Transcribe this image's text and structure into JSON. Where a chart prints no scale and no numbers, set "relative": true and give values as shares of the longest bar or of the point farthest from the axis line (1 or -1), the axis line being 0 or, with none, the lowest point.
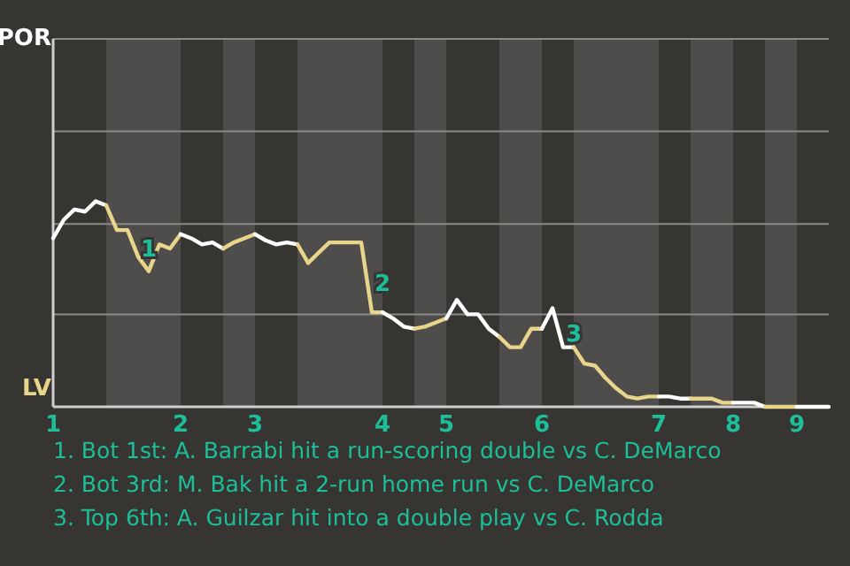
{
  "chart_data": {
    "type": "line",
    "relative": true,
    "categories": [
      "1",
      null,
      null,
      null,
      null,
      null,
      null,
      null,
      null,
      null,
      null,
      null,
      "2",
      null,
      null,
      null,
      null,
      null,
      null,
      "3",
      null,
      null,
      null,
      null,
      null,
      null,
      null,
      null,
      null,
      null,
      null,
      "4",
      null,
      null,
      null,
      null,
      null,
      "5",
      null,
      null,
      null,
      null,
      null,
      null,
      null,
      null,
      "6",
      null,
      null,
      null,
      null,
      null,
      null,
      null,
      null,
      null,
      null,
      "7",
      null,
      null,
      null,
      null,
      null,
      null,
      "8",
      null,
      null,
      null,
      null,
      null,
      "9",
      null,
      null,
      null
    ],
    "ref_lines": [
      {
        "axis": "y",
        "value": 0.45,
        "color": "#8c8a87"
      },
      {
        "axis": "y",
        "value": 0.89,
        "color": "#8c8a87"
      },
      {
        "axis": "y",
        "value": 1.34,
        "color": "#8c8a87"
      },
      {
        "axis": "y",
        "value": 1.79,
        "color": "#8c8a87"
      }
    ],
    "marker": "none",
    "line_style": "solid",
    "series": [
      {
        "color": "#ffffff",
        "values": [
          0.82,
          0.91,
          0.96,
          0.95,
          1,
          0.98,
          null,
          null,
          null,
          null,
          null,
          null,
          null,
          null,
          null,
          null,
          null,
          null,
          null,
          null,
          null,
          null,
          null,
          null,
          null,
          null,
          null,
          null,
          null,
          null,
          null,
          null,
          null,
          null,
          null,
          null,
          null,
          null,
          null,
          null,
          null,
          null,
          null,
          null,
          null,
          null,
          null,
          null,
          null,
          null,
          null,
          null,
          null,
          null,
          null,
          null,
          null,
          null,
          null,
          null,
          null,
          null,
          null,
          null,
          null,
          null,
          null,
          null,
          null,
          null,
          null,
          null,
          null,
          null
        ]
      },
      {
        "color": "#e8d48a",
        "values": [
          null,
          null,
          null,
          null,
          null,
          0.98,
          0.86,
          0.86,
          0.73,
          0.66,
          0.79,
          0.77,
          0.84,
          null,
          null,
          null,
          null,
          null,
          null,
          null,
          null,
          null,
          null,
          null,
          null,
          null,
          null,
          null,
          null,
          null,
          null,
          null,
          null,
          null,
          null,
          null,
          null,
          null,
          null,
          null,
          null,
          null,
          null,
          null,
          null,
          null,
          null,
          null,
          null,
          null,
          null,
          null,
          null,
          null,
          null,
          null,
          null,
          null,
          null,
          null,
          null,
          null,
          null,
          null,
          null,
          null,
          null,
          null,
          null,
          null,
          null,
          null,
          null,
          null
        ]
      },
      {
        "color": "#ffffff",
        "values": [
          null,
          null,
          null,
          null,
          null,
          null,
          null,
          null,
          null,
          null,
          null,
          null,
          0.84,
          0.82,
          0.79,
          0.8,
          0.77,
          null,
          null,
          null,
          null,
          null,
          null,
          null,
          null,
          null,
          null,
          null,
          null,
          null,
          null,
          null,
          null,
          null,
          null,
          null,
          null,
          null,
          null,
          null,
          null,
          null,
          null,
          null,
          null,
          null,
          null,
          null,
          null,
          null,
          null,
          null,
          null,
          null,
          null,
          null,
          null,
          null,
          null,
          null,
          null,
          null,
          null,
          null,
          null,
          null,
          null,
          null,
          null,
          null,
          null,
          null,
          null,
          null
        ]
      },
      {
        "color": "#e8d48a",
        "values": [
          null,
          null,
          null,
          null,
          null,
          null,
          null,
          null,
          null,
          null,
          null,
          null,
          null,
          null,
          null,
          null,
          0.77,
          0.8,
          0.82,
          0.84,
          null,
          null,
          null,
          null,
          null,
          null,
          null,
          null,
          null,
          null,
          null,
          null,
          null,
          null,
          null,
          null,
          null,
          null,
          null,
          null,
          null,
          null,
          null,
          null,
          null,
          null,
          null,
          null,
          null,
          null,
          null,
          null,
          null,
          null,
          null,
          null,
          null,
          null,
          null,
          null,
          null,
          null,
          null,
          null,
          null,
          null,
          null,
          null,
          null,
          null,
          null,
          null,
          null,
          null
        ]
      },
      {
        "color": "#ffffff",
        "values": [
          null,
          null,
          null,
          null,
          null,
          null,
          null,
          null,
          null,
          null,
          null,
          null,
          null,
          null,
          null,
          null,
          null,
          null,
          null,
          0.84,
          0.81,
          0.79,
          0.8,
          0.79,
          null,
          null,
          null,
          null,
          null,
          null,
          null,
          null,
          null,
          null,
          null,
          null,
          null,
          null,
          null,
          null,
          null,
          null,
          null,
          null,
          null,
          null,
          null,
          null,
          null,
          null,
          null,
          null,
          null,
          null,
          null,
          null,
          null,
          null,
          null,
          null,
          null,
          null,
          null,
          null,
          null,
          null,
          null,
          null,
          null,
          null,
          null,
          null,
          null,
          null
        ]
      },
      {
        "color": "#e8d48a",
        "values": [
          null,
          null,
          null,
          null,
          null,
          null,
          null,
          null,
          null,
          null,
          null,
          null,
          null,
          null,
          null,
          null,
          null,
          null,
          null,
          null,
          null,
          null,
          null,
          0.79,
          0.7,
          0.75,
          0.8,
          0.8,
          0.8,
          0.8,
          0.46,
          0.46,
          null,
          null,
          null,
          null,
          null,
          null,
          null,
          null,
          null,
          null,
          null,
          null,
          null,
          null,
          null,
          null,
          null,
          null,
          null,
          null,
          null,
          null,
          null,
          null,
          null,
          null,
          null,
          null,
          null,
          null,
          null,
          null,
          null,
          null,
          null,
          null,
          null,
          null,
          null,
          null,
          null,
          null
        ]
      },
      {
        "color": "#ffffff",
        "values": [
          null,
          null,
          null,
          null,
          null,
          null,
          null,
          null,
          null,
          null,
          null,
          null,
          null,
          null,
          null,
          null,
          null,
          null,
          null,
          null,
          null,
          null,
          null,
          null,
          null,
          null,
          null,
          null,
          null,
          null,
          null,
          0.46,
          0.43,
          0.39,
          0.38,
          null,
          null,
          null,
          null,
          null,
          null,
          null,
          null,
          null,
          null,
          null,
          null,
          null,
          null,
          null,
          null,
          null,
          null,
          null,
          null,
          null,
          null,
          null,
          null,
          null,
          null,
          null,
          null,
          null,
          null,
          null,
          null,
          null,
          null,
          null,
          null,
          null,
          null,
          null
        ]
      },
      {
        "color": "#e8d48a",
        "values": [
          null,
          null,
          null,
          null,
          null,
          null,
          null,
          null,
          null,
          null,
          null,
          null,
          null,
          null,
          null,
          null,
          null,
          null,
          null,
          null,
          null,
          null,
          null,
          null,
          null,
          null,
          null,
          null,
          null,
          null,
          null,
          null,
          null,
          null,
          0.38,
          0.39,
          0.41,
          0.43,
          null,
          null,
          null,
          null,
          null,
          null,
          null,
          null,
          null,
          null,
          null,
          null,
          null,
          null,
          null,
          null,
          null,
          null,
          null,
          null,
          null,
          null,
          null,
          null,
          null,
          null,
          null,
          null,
          null,
          null,
          null,
          null,
          null,
          null,
          null,
          null
        ]
      },
      {
        "color": "#ffffff",
        "values": [
          null,
          null,
          null,
          null,
          null,
          null,
          null,
          null,
          null,
          null,
          null,
          null,
          null,
          null,
          null,
          null,
          null,
          null,
          null,
          null,
          null,
          null,
          null,
          null,
          null,
          null,
          null,
          null,
          null,
          null,
          null,
          null,
          null,
          null,
          null,
          null,
          null,
          0.43,
          0.52,
          0.45,
          0.45,
          0.38,
          0.34,
          null,
          null,
          null,
          null,
          null,
          null,
          null,
          null,
          null,
          null,
          null,
          null,
          null,
          null,
          null,
          null,
          null,
          null,
          null,
          null,
          null,
          null,
          null,
          null,
          null,
          null,
          null,
          null,
          null,
          null,
          null
        ]
      },
      {
        "color": "#e8d48a",
        "values": [
          null,
          null,
          null,
          null,
          null,
          null,
          null,
          null,
          null,
          null,
          null,
          null,
          null,
          null,
          null,
          null,
          null,
          null,
          null,
          null,
          null,
          null,
          null,
          null,
          null,
          null,
          null,
          null,
          null,
          null,
          null,
          null,
          null,
          null,
          null,
          null,
          null,
          null,
          null,
          null,
          null,
          null,
          0.34,
          0.29,
          0.29,
          0.38,
          0.38,
          null,
          null,
          null,
          null,
          null,
          null,
          null,
          null,
          null,
          null,
          null,
          null,
          null,
          null,
          null,
          null,
          null,
          null,
          null,
          null,
          null,
          null,
          null,
          null,
          null,
          null,
          null
        ]
      },
      {
        "color": "#ffffff",
        "values": [
          null,
          null,
          null,
          null,
          null,
          null,
          null,
          null,
          null,
          null,
          null,
          null,
          null,
          null,
          null,
          null,
          null,
          null,
          null,
          null,
          null,
          null,
          null,
          null,
          null,
          null,
          null,
          null,
          null,
          null,
          null,
          null,
          null,
          null,
          null,
          null,
          null,
          null,
          null,
          null,
          null,
          null,
          null,
          null,
          null,
          null,
          0.38,
          0.48,
          0.29,
          0.29,
          null,
          null,
          null,
          null,
          null,
          null,
          null,
          null,
          null,
          null,
          null,
          null,
          null,
          null,
          null,
          null,
          null,
          null,
          null,
          null,
          null,
          null,
          null,
          null
        ]
      },
      {
        "color": "#e8d48a",
        "values": [
          null,
          null,
          null,
          null,
          null,
          null,
          null,
          null,
          null,
          null,
          null,
          null,
          null,
          null,
          null,
          null,
          null,
          null,
          null,
          null,
          null,
          null,
          null,
          null,
          null,
          null,
          null,
          null,
          null,
          null,
          null,
          null,
          null,
          null,
          null,
          null,
          null,
          null,
          null,
          null,
          null,
          null,
          null,
          null,
          null,
          null,
          null,
          null,
          null,
          0.29,
          0.21,
          0.2,
          0.14,
          0.09,
          0.05,
          0.04,
          0.05,
          0.05,
          null,
          null,
          null,
          null,
          null,
          null,
          null,
          null,
          null,
          null,
          null,
          null,
          null,
          null,
          null,
          null
        ]
      },
      {
        "color": "#ffffff",
        "values": [
          null,
          null,
          null,
          null,
          null,
          null,
          null,
          null,
          null,
          null,
          null,
          null,
          null,
          null,
          null,
          null,
          null,
          null,
          null,
          null,
          null,
          null,
          null,
          null,
          null,
          null,
          null,
          null,
          null,
          null,
          null,
          null,
          null,
          null,
          null,
          null,
          null,
          null,
          null,
          null,
          null,
          null,
          null,
          null,
          null,
          null,
          null,
          null,
          null,
          null,
          null,
          null,
          null,
          null,
          null,
          null,
          null,
          0.05,
          0.05,
          0.04,
          0.04,
          null,
          null,
          null,
          null,
          null,
          null,
          null,
          null,
          null,
          null,
          null,
          null,
          null
        ]
      },
      {
        "color": "#e8d48a",
        "values": [
          null,
          null,
          null,
          null,
          null,
          null,
          null,
          null,
          null,
          null,
          null,
          null,
          null,
          null,
          null,
          null,
          null,
          null,
          null,
          null,
          null,
          null,
          null,
          null,
          null,
          null,
          null,
          null,
          null,
          null,
          null,
          null,
          null,
          null,
          null,
          null,
          null,
          null,
          null,
          null,
          null,
          null,
          null,
          null,
          null,
          null,
          null,
          null,
          null,
          null,
          null,
          null,
          null,
          null,
          null,
          null,
          null,
          null,
          null,
          null,
          0.04,
          0.04,
          0.04,
          0.02,
          0.02,
          null,
          null,
          null,
          null,
          null,
          null,
          null,
          null,
          null
        ]
      },
      {
        "color": "#ffffff",
        "values": [
          null,
          null,
          null,
          null,
          null,
          null,
          null,
          null,
          null,
          null,
          null,
          null,
          null,
          null,
          null,
          null,
          null,
          null,
          null,
          null,
          null,
          null,
          null,
          null,
          null,
          null,
          null,
          null,
          null,
          null,
          null,
          null,
          null,
          null,
          null,
          null,
          null,
          null,
          null,
          null,
          null,
          null,
          null,
          null,
          null,
          null,
          null,
          null,
          null,
          null,
          null,
          null,
          null,
          null,
          null,
          null,
          null,
          null,
          null,
          null,
          null,
          null,
          null,
          null,
          0.02,
          0.02,
          0.02,
          0,
          null,
          null,
          null,
          null,
          null,
          null
        ]
      },
      {
        "color": "#e8d48a",
        "values": [
          null,
          null,
          null,
          null,
          null,
          null,
          null,
          null,
          null,
          null,
          null,
          null,
          null,
          null,
          null,
          null,
          null,
          null,
          null,
          null,
          null,
          null,
          null,
          null,
          null,
          null,
          null,
          null,
          null,
          null,
          null,
          null,
          null,
          null,
          null,
          null,
          null,
          null,
          null,
          null,
          null,
          null,
          null,
          null,
          null,
          null,
          null,
          null,
          null,
          null,
          null,
          null,
          null,
          null,
          null,
          null,
          null,
          null,
          null,
          null,
          null,
          null,
          null,
          null,
          null,
          null,
          null,
          0,
          0,
          0,
          0,
          null,
          null,
          null
        ]
      },
      {
        "color": "#ffffff",
        "values": [
          null,
          null,
          null,
          null,
          null,
          null,
          null,
          null,
          null,
          null,
          null,
          null,
          null,
          null,
          null,
          null,
          null,
          null,
          null,
          null,
          null,
          null,
          null,
          null,
          null,
          null,
          null,
          null,
          null,
          null,
          null,
          null,
          null,
          null,
          null,
          null,
          null,
          null,
          null,
          null,
          null,
          null,
          null,
          null,
          null,
          null,
          null,
          null,
          null,
          null,
          null,
          null,
          null,
          null,
          null,
          null,
          null,
          null,
          null,
          null,
          null,
          null,
          null,
          null,
          null,
          null,
          null,
          null,
          null,
          null,
          0,
          0,
          0,
          0
        ]
      }
    ],
    "annotations": [
      "POR",
      "LV",
      "1",
      "2",
      "3",
      "1. Bot 1st: A. Barrabi hit a run-scoring double vs C. DeMarco",
      "2. Bot 3rd: M. Bak hit a 2-run home run vs C. DeMarco",
      "3. Top 6th: A. Guilzar hit into a double play vs C. Rodda"
    ]
  }
}
